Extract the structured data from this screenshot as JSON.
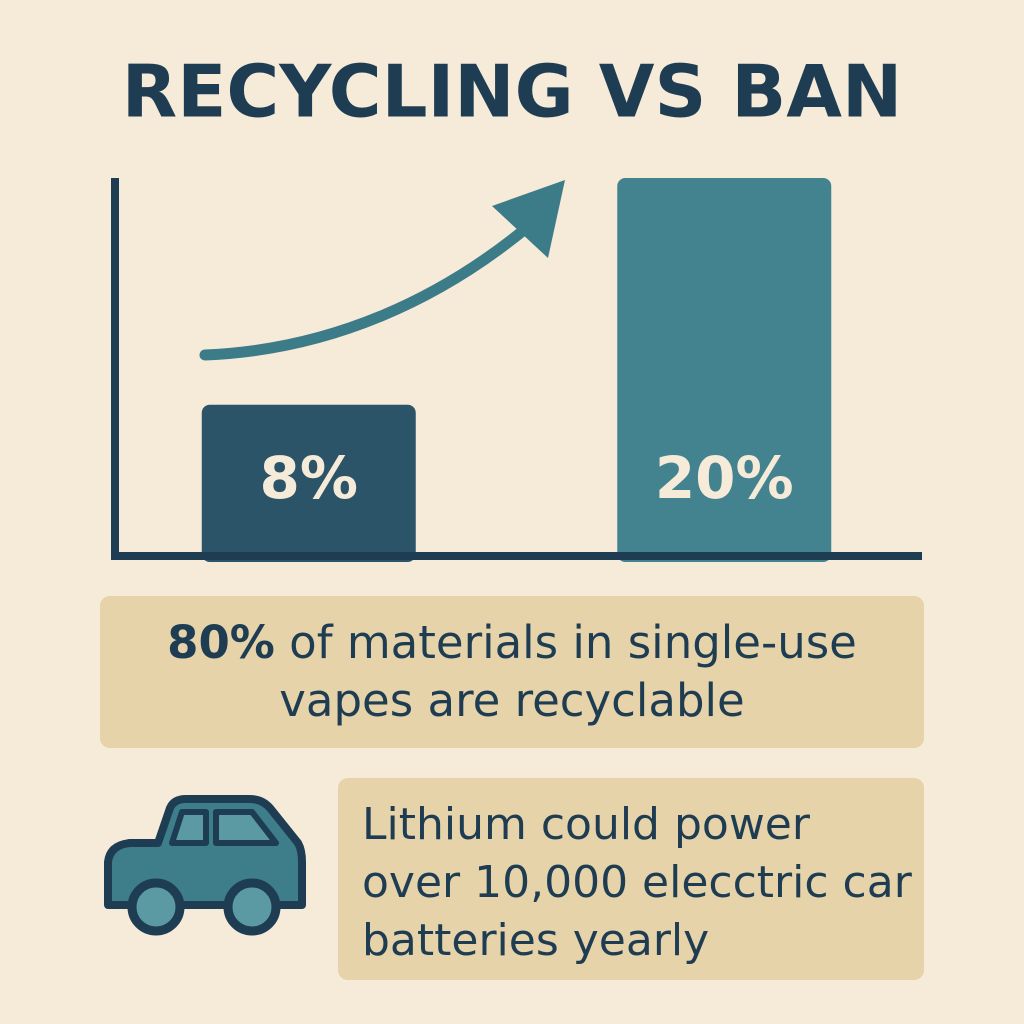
{
  "chart_data": {
    "type": "bar",
    "title": "RECYCLING VS BAN",
    "categories": [
      null,
      null
    ],
    "values": [
      8,
      20
    ],
    "value_labels": [
      "8%",
      "20%"
    ],
    "colors": [
      "#2b5468",
      "#43828f"
    ],
    "ylim": [
      0,
      20
    ],
    "annotations": [
      {
        "emphasis": "80%",
        "text": " of materials in single-use vapes are recyclable"
      },
      {
        "text": "Lithium could power over 10,000 elecctric car batteries yearly"
      }
    ]
  }
}
